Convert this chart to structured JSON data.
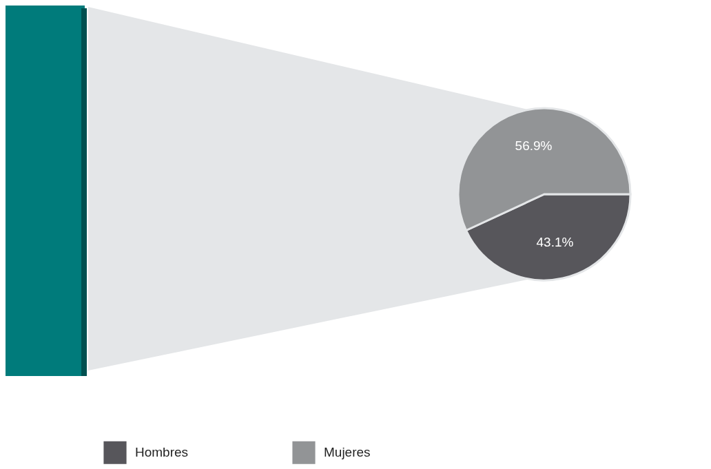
{
  "chart_data": {
    "type": "pie",
    "categories": [
      "Hombres",
      "Mujeres"
    ],
    "values": [
      43.1,
      56.9
    ],
    "colors": [
      "#57565b",
      "#929496"
    ],
    "value_labels": [
      "43.1%",
      "56.9%"
    ],
    "legend": "bottom left"
  }
}
